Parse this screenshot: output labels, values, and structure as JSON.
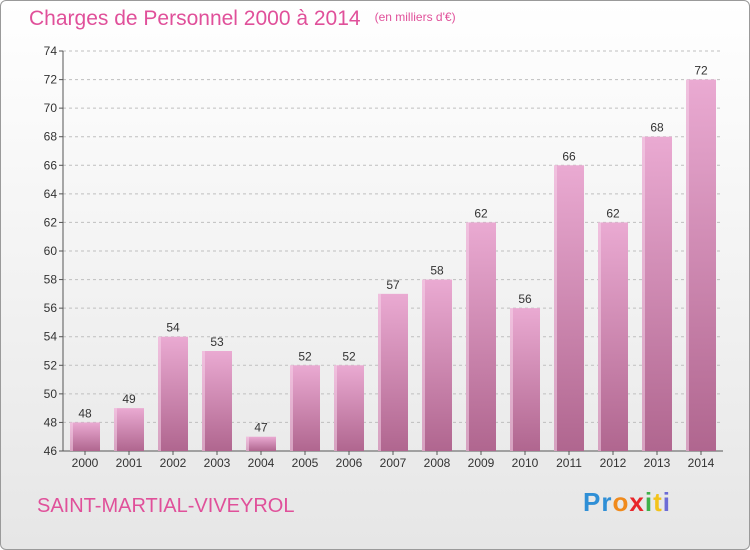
{
  "header": {
    "title": "Charges de Personnel 2000 à 2014",
    "subtitle": "(en milliers d'€)"
  },
  "footer": {
    "commune": "SAINT-MARTIAL-VIVEYROL",
    "logo_letters": [
      "P",
      "r",
      "o",
      "x",
      "i",
      "t",
      "i"
    ],
    "logo_colors": [
      "#2f8fd6",
      "#2f8fd6",
      "#f08a1c",
      "#e8262b",
      "#3fb14a",
      "#f3c31b",
      "#6c6cd6"
    ]
  },
  "colors": {
    "bar_top": "#eaaad2",
    "bar_bottom": "#b0668f",
    "bar_side": "#f6d4ea",
    "title": "#e0509a",
    "grid": "#bfbfbf"
  },
  "chart_data": {
    "type": "bar",
    "title": "Charges de Personnel 2000 à 2014",
    "subtitle": "(en milliers d'€)",
    "categories": [
      "2000",
      "2001",
      "2002",
      "2003",
      "2004",
      "2005",
      "2006",
      "2007",
      "2008",
      "2009",
      "2010",
      "2011",
      "2012",
      "2013",
      "2014"
    ],
    "values": [
      48,
      49,
      54,
      53,
      47,
      52,
      52,
      57,
      58,
      62,
      56,
      66,
      62,
      68,
      72
    ],
    "ylim": [
      46,
      74
    ],
    "yticks": [
      46,
      48,
      50,
      52,
      54,
      56,
      58,
      60,
      62,
      64,
      66,
      68,
      70,
      72,
      74
    ],
    "grid": true,
    "grid_axis": "y"
  }
}
